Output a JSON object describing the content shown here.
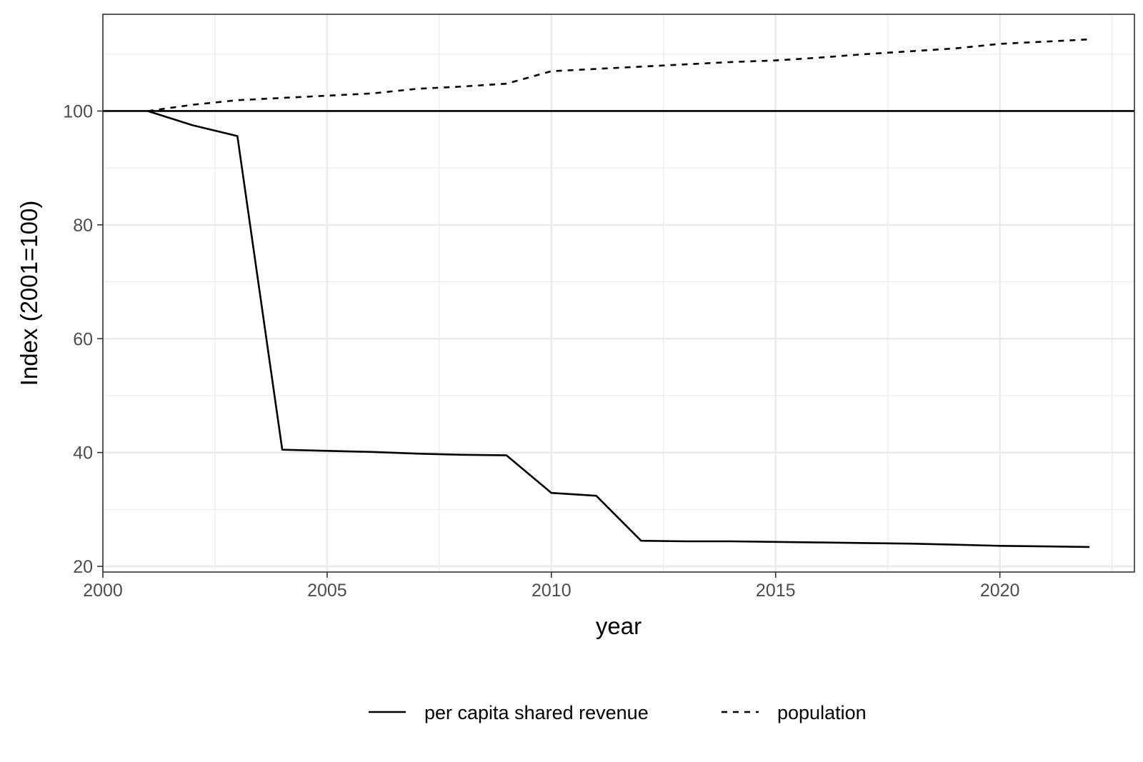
{
  "chart_data": {
    "type": "line",
    "xlabel": "year",
    "ylabel": "Index (2001=100)",
    "xlim": [
      2000,
      2023
    ],
    "ylim": [
      19,
      117
    ],
    "x_ticks": [
      2000,
      2005,
      2010,
      2015,
      2020
    ],
    "x_tick_labels": [
      "2000",
      "2005",
      "2010",
      "2015",
      "2020"
    ],
    "y_ticks": [
      20,
      40,
      60,
      80,
      100
    ],
    "y_tick_labels": [
      "20",
      "40",
      "60",
      "80",
      "100"
    ],
    "reference_line": {
      "y": 100
    },
    "grid": true,
    "legend_position": "bottom",
    "series": [
      {
        "name": "per capita shared revenue",
        "linetype": "solid",
        "color": "#000000",
        "x": [
          2001,
          2002,
          2003,
          2004,
          2005,
          2006,
          2007,
          2008,
          2009,
          2010,
          2011,
          2012,
          2013,
          2014,
          2015,
          2016,
          2017,
          2018,
          2019,
          2020,
          2021,
          2022
        ],
        "values": [
          100,
          97.5,
          95.6,
          40.5,
          40.3,
          40.1,
          39.8,
          39.6,
          39.5,
          32.9,
          32.4,
          24.5,
          24.4,
          24.4,
          24.3,
          24.2,
          24.1,
          24.0,
          23.8,
          23.6,
          23.5,
          23.4
        ]
      },
      {
        "name": "population",
        "linetype": "dashed",
        "color": "#000000",
        "x": [
          2001,
          2002,
          2003,
          2004,
          2005,
          2006,
          2007,
          2008,
          2009,
          2010,
          2011,
          2012,
          2013,
          2014,
          2015,
          2016,
          2017,
          2018,
          2019,
          2020,
          2021,
          2022
        ],
        "values": [
          100,
          101.1,
          101.9,
          102.3,
          102.7,
          103.1,
          103.9,
          104.3,
          104.8,
          107.0,
          107.4,
          107.8,
          108.2,
          108.6,
          108.9,
          109.4,
          110.0,
          110.5,
          111.0,
          111.8,
          112.2,
          112.6
        ]
      }
    ]
  }
}
